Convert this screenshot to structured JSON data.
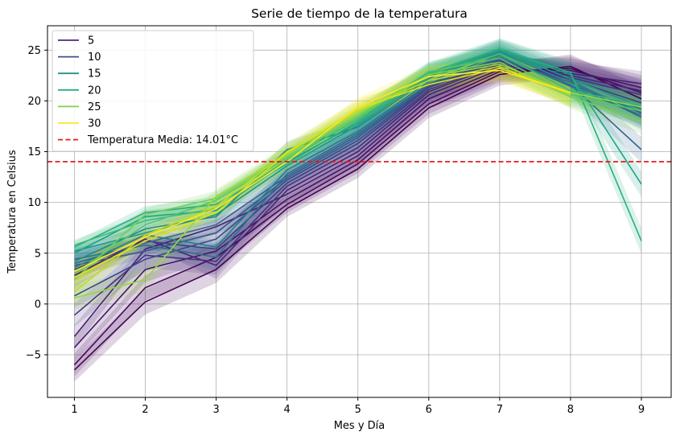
{
  "chart_data": {
    "type": "line",
    "title": "Serie de tiempo de la temperatura",
    "xlabel": "Mes y Día",
    "ylabel": "Temperatura en Celsius",
    "xlim": [
      0.62,
      9.42
    ],
    "ylim": [
      -9.2,
      27.4
    ],
    "xticks": [
      1,
      2,
      3,
      4,
      5,
      6,
      7,
      8,
      9
    ],
    "yticks": [
      -5,
      0,
      5,
      10,
      15,
      20,
      25
    ],
    "ytick_labels": [
      "−5",
      "0",
      "5",
      "10",
      "15",
      "20",
      "25"
    ],
    "grid": true,
    "legend_position": "top-left",
    "legend": [
      {
        "label": "5",
        "color": "#472d7b"
      },
      {
        "label": "10",
        "color": "#3b528b"
      },
      {
        "label": "15",
        "color": "#21918c"
      },
      {
        "label": "20",
        "color": "#28ae80"
      },
      {
        "label": "25",
        "color": "#7ad151"
      },
      {
        "label": "30",
        "color": "#fde725"
      }
    ],
    "mean_line": {
      "label": "Temperatura Media: 14.01°C",
      "value": 14.01,
      "color": "#e31a1c"
    },
    "x": [
      1,
      2,
      3,
      4,
      5,
      6,
      7,
      8,
      9
    ],
    "series": [
      {
        "color": "#440154",
        "values": [
          -6.5,
          0.2,
          3.4,
          9.4,
          13.3,
          19.3,
          22.6,
          23.4,
          20.2
        ]
      },
      {
        "color": "#46085c",
        "values": [
          -6.0,
          1.6,
          4.6,
          9.8,
          13.8,
          19.7,
          22.9,
          23.2,
          20.8
        ]
      },
      {
        "color": "#471365",
        "values": [
          -4.3,
          3.4,
          5.2,
          10.3,
          14.2,
          20.2,
          23.1,
          23.0,
          21.3
        ]
      },
      {
        "color": "#482173",
        "values": [
          -3.2,
          5.4,
          7.6,
          10.8,
          14.6,
          20.6,
          23.4,
          22.7,
          21.7
        ]
      },
      {
        "color": "#482576",
        "values": [
          2.8,
          6.4,
          3.8,
          11.2,
          15.0,
          20.9,
          23.6,
          22.5,
          21.0
        ]
      },
      {
        "color": "#46337e",
        "values": [
          -1.1,
          4.8,
          4.2,
          11.6,
          15.4,
          21.1,
          23.7,
          22.3,
          20.6
        ]
      },
      {
        "color": "#433e85",
        "values": [
          3.4,
          6.2,
          5.4,
          11.9,
          15.8,
          21.3,
          23.9,
          22.1,
          19.8
        ]
      },
      {
        "color": "#3e4989",
        "values": [
          0.8,
          4.4,
          6.4,
          12.2,
          16.1,
          21.4,
          24.0,
          21.9,
          18.8
        ]
      },
      {
        "color": "#38588c",
        "values": [
          3.8,
          5.2,
          7.0,
          12.4,
          16.4,
          21.5,
          24.1,
          21.8,
          18.4
        ]
      },
      {
        "color": "#33638d",
        "values": [
          4.0,
          6.0,
          7.8,
          12.6,
          16.6,
          21.6,
          24.2,
          21.6,
          15.2
        ]
      },
      {
        "color": "#2d708e",
        "values": [
          4.4,
          5.8,
          4.6,
          12.8,
          16.8,
          21.7,
          24.3,
          21.5,
          19.2
        ]
      },
      {
        "color": "#287c8e",
        "values": [
          3.6,
          6.8,
          5.6,
          13.2,
          17.0,
          21.9,
          24.5,
          21.4,
          18.6
        ]
      },
      {
        "color": "#238a8d",
        "values": [
          4.2,
          7.4,
          8.6,
          15.2,
          17.4,
          22.2,
          24.8,
          21.8,
          18.9
        ]
      },
      {
        "color": "#1f968b",
        "values": [
          5.2,
          7.0,
          8.8,
          13.6,
          17.6,
          22.4,
          24.9,
          22.2,
          19.4
        ]
      },
      {
        "color": "#20a386",
        "values": [
          5.0,
          8.6,
          9.2,
          14.0,
          17.8,
          22.6,
          25.0,
          22.6,
          11.8
        ]
      },
      {
        "color": "#29af7f",
        "values": [
          5.6,
          9.0,
          9.8,
          13.8,
          18.0,
          22.8,
          25.1,
          22.8,
          6.2
        ]
      },
      {
        "color": "#3bbb75",
        "values": [
          5.8,
          8.2,
          9.4,
          14.2,
          18.2,
          22.7,
          24.6,
          21.0,
          19.6
        ]
      },
      {
        "color": "#55c667",
        "values": [
          3.0,
          7.8,
          10.2,
          14.4,
          18.4,
          22.9,
          24.2,
          20.6,
          19.0
        ]
      },
      {
        "color": "#73d056",
        "values": [
          2.4,
          8.8,
          10.4,
          14.6,
          18.6,
          22.6,
          23.8,
          20.4,
          18.0
        ]
      },
      {
        "color": "#95d840",
        "values": [
          0.6,
          2.4,
          10.6,
          14.8,
          18.8,
          22.4,
          23.6,
          20.8,
          19.4
        ]
      },
      {
        "color": "#b8de29",
        "values": [
          1.2,
          6.8,
          9.6,
          15.0,
          19.0,
          22.0,
          23.4,
          20.6,
          null
        ]
      },
      {
        "color": "#dde318",
        "values": [
          2.6,
          6.2,
          9.0,
          14.9,
          19.2,
          21.6,
          23.2,
          20.8,
          null
        ]
      },
      {
        "color": "#fde725",
        "values": [
          3.2,
          6.6,
          9.4,
          14.0,
          19.4,
          22.4,
          23.0,
          20.8,
          null
        ]
      }
    ]
  }
}
